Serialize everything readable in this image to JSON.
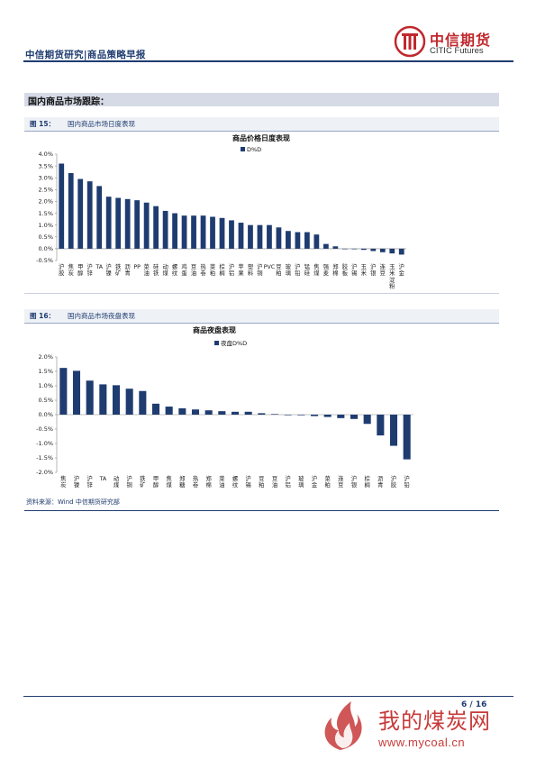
{
  "header": {
    "title": "中信期货研究|商品策略早报",
    "logo_cn": "中信期货",
    "logo_en": "CITIC Futures"
  },
  "section": {
    "title": "国内商品市场跟踪："
  },
  "figures": [
    {
      "number": "图 15：",
      "caption": "国内商品市场日度表现"
    },
    {
      "number": "图 16：",
      "caption": "国内商品市场夜盘表现"
    }
  ],
  "source": "资料来源：Wind  中信期货研究部",
  "page": "6 / 16",
  "watermark": {
    "text": "我的煤炭网",
    "url": "www.mycoal.cn"
  },
  "colors": {
    "bar": "#1f3c70",
    "brand_red": "#c0282d",
    "header_blue": "#1f3c70"
  },
  "chart_data": [
    {
      "type": "bar",
      "title": "商品价格日度表现",
      "legend": "D%D",
      "legend_position": "top",
      "categories": [
        "沪胶",
        "焦炭",
        "甲醇",
        "沪锌",
        "TA",
        "沪镍",
        "铁矿",
        "沥青",
        "PP",
        "菜油",
        "硅铁",
        "动煤",
        "螺纹",
        "鸡蛋",
        "豆油",
        "热卷",
        "菜粕",
        "棕榈",
        "沪铝",
        "苹果",
        "塑料",
        "沪铜",
        "PVC",
        "豆粕",
        "玻璃",
        "沪铅",
        "锰硅",
        "焦煤",
        "强麦",
        "郑棉",
        "胶板",
        "沪锡",
        "玉米",
        "沪银",
        "连豆",
        "玉米淀粉",
        "沪金"
      ],
      "values": [
        3.6,
        3.2,
        2.95,
        2.85,
        2.65,
        2.2,
        2.15,
        2.1,
        2.05,
        1.95,
        1.8,
        1.6,
        1.5,
        1.4,
        1.4,
        1.4,
        1.35,
        1.3,
        1.2,
        1.1,
        1.0,
        1.0,
        1.0,
        0.9,
        0.75,
        0.7,
        0.7,
        0.6,
        0.2,
        0.1,
        0.0,
        -0.02,
        -0.05,
        -0.1,
        -0.15,
        -0.2,
        -0.25
      ],
      "ylim": [
        -0.5,
        4.0
      ],
      "yticks": [
        "4.0%",
        "3.5%",
        "3.0%",
        "2.5%",
        "2.0%",
        "1.5%",
        "1.0%",
        "0.5%",
        "0.0%",
        "-0.5%"
      ],
      "grid": false
    },
    {
      "type": "bar",
      "title": "商品夜盘表现",
      "legend": "夜盘D%D",
      "legend_position": "top",
      "categories": [
        "焦炭",
        "沪镍",
        "沪锌",
        "TA",
        "动煤",
        "沪铜",
        "铁矿",
        "甲醇",
        "焦煤",
        "郑糖",
        "热卷",
        "郑棉",
        "菜油",
        "螺纹",
        "沪锡",
        "豆粕",
        "豆油",
        "沪铝",
        "玻璃",
        "沪金",
        "菜粕",
        "连豆",
        "沪银",
        "棕榈",
        "沥青",
        "沪胶",
        "沪铅"
      ],
      "values": [
        1.62,
        1.52,
        1.18,
        1.05,
        1.02,
        0.9,
        0.82,
        0.38,
        0.28,
        0.22,
        0.18,
        0.15,
        0.12,
        0.1,
        0.1,
        0.05,
        0.02,
        0.0,
        -0.02,
        -0.05,
        -0.08,
        -0.12,
        -0.15,
        -0.32,
        -0.72,
        -1.08,
        -1.55
      ],
      "ylim": [
        -2.0,
        2.0
      ],
      "yticks": [
        "2.0%",
        "1.5%",
        "1.0%",
        "0.5%",
        "0.0%",
        "-0.5%",
        "-1.0%",
        "-1.5%",
        "-2.0%"
      ],
      "grid": false
    }
  ]
}
